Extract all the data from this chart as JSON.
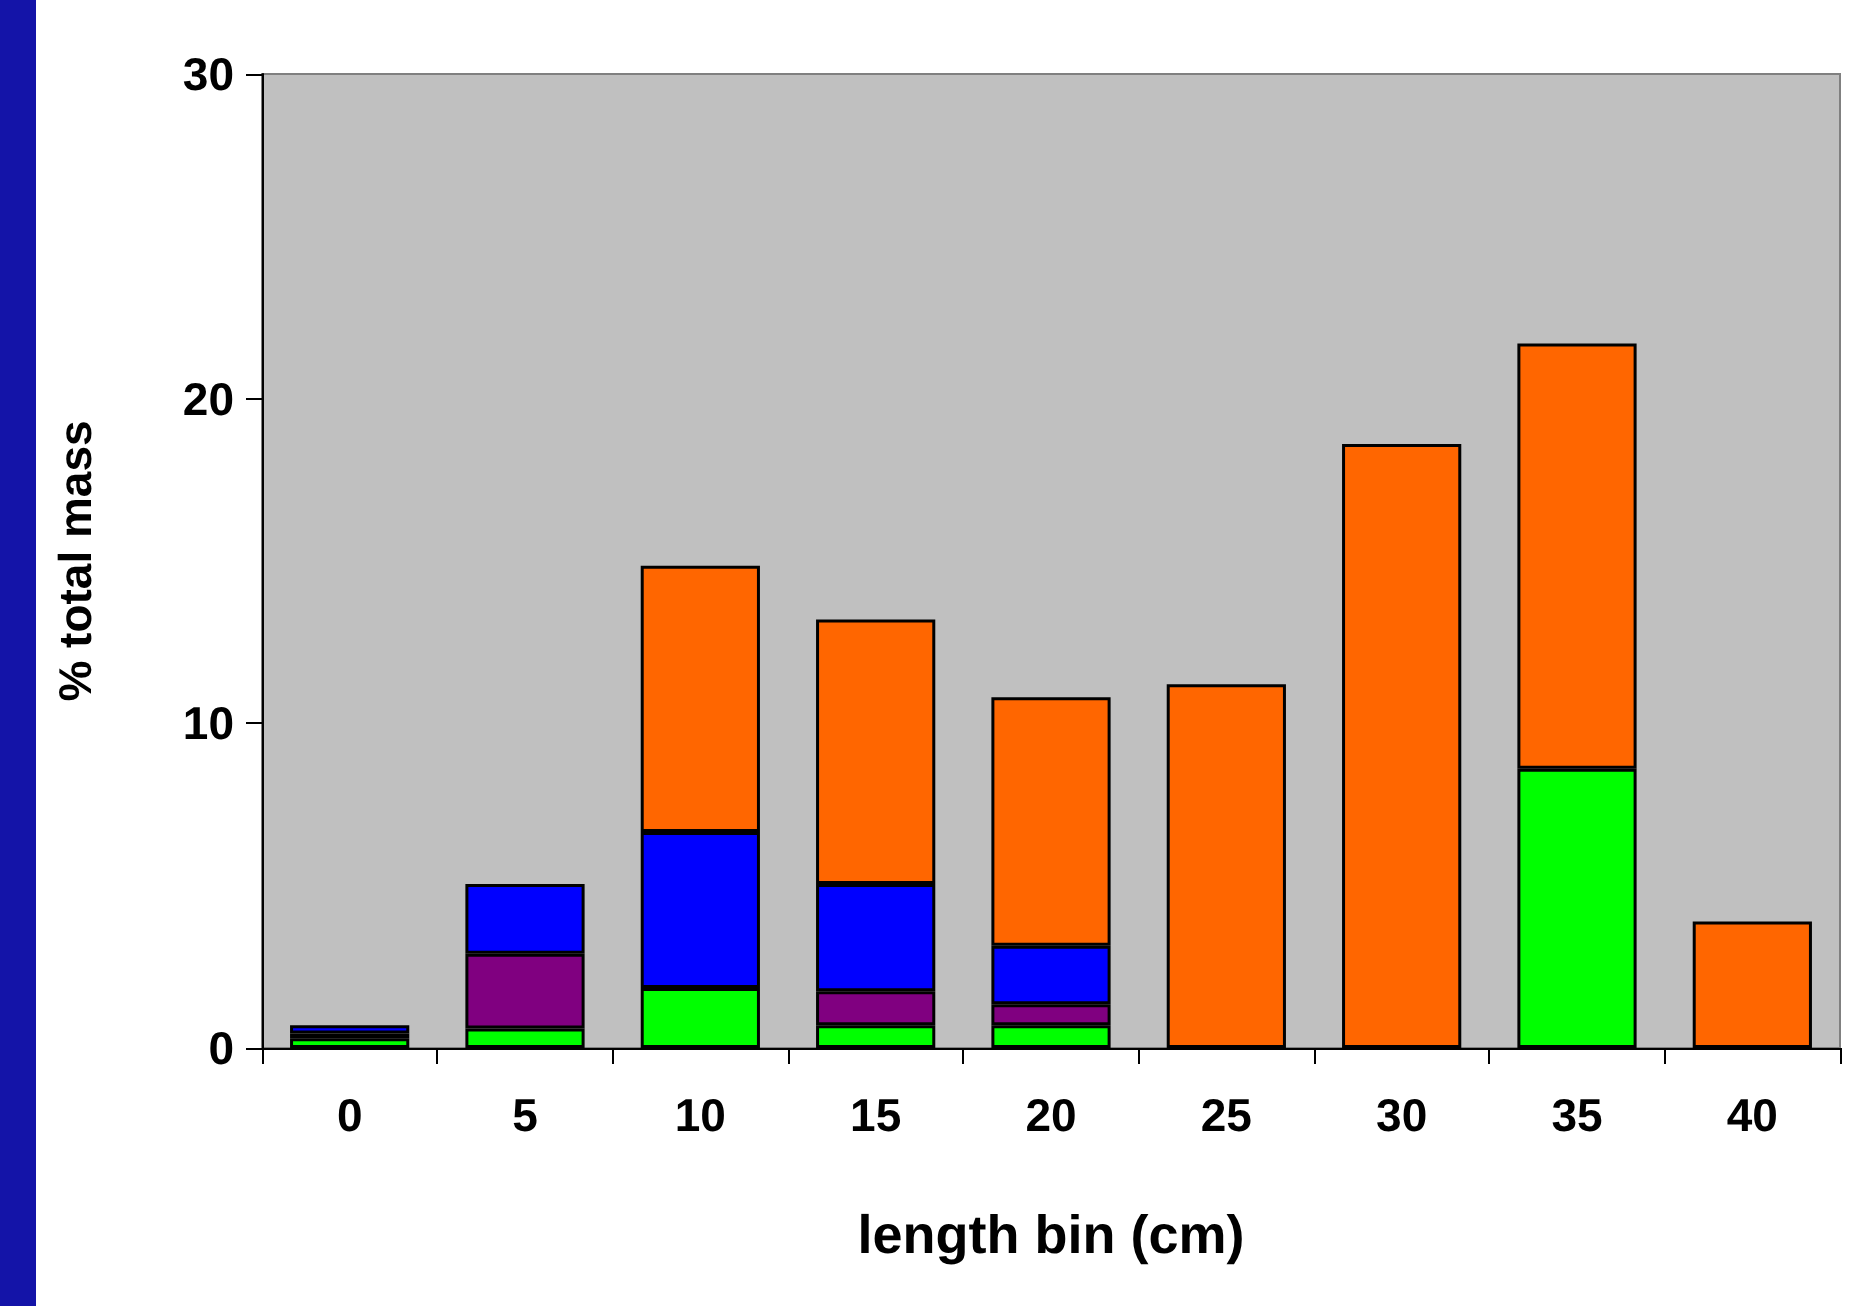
{
  "chart_data": {
    "type": "bar",
    "xlabel": "length bin (cm)",
    "ylabel": "% total mass",
    "categories": [
      "0",
      "5",
      "10",
      "15",
      "20",
      "25",
      "30",
      "35",
      "40"
    ],
    "stacked": true,
    "series": [
      {
        "color": "#00ff00",
        "values": [
          0.3,
          0.6,
          1.85,
          0.7,
          0.7,
          null,
          null,
          8.6,
          null
        ]
      },
      {
        "color": "#800080",
        "values": [
          0.15,
          2.3,
          null,
          1.05,
          0.65,
          null,
          null,
          null,
          null
        ]
      },
      {
        "color": "#0000ff",
        "values": [
          0.25,
          2.15,
          4.8,
          3.3,
          1.8,
          null,
          null,
          null,
          null
        ]
      },
      {
        "color": "#ff6600",
        "values": [
          null,
          null,
          8.2,
          8.15,
          7.65,
          11.2,
          18.6,
          13.1,
          3.9
        ]
      }
    ],
    "ylim": [
      0,
      30
    ],
    "yticks": [
      0,
      10,
      20,
      30
    ],
    "grid": false
  }
}
